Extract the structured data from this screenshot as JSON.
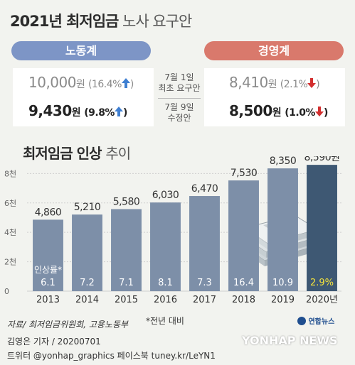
{
  "title": {
    "part1": "2021년 최저임금",
    "part2": "노사 요구안"
  },
  "labor": {
    "label": "노동계",
    "first_value": "10,000",
    "first_unit": "원",
    "first_rate": "(16.4%",
    "first_close": ")",
    "second_value": "9,430",
    "second_unit": "원",
    "second_rate": "(9.8%",
    "second_close": ")"
  },
  "management": {
    "label": "경영계",
    "first_value": "8,410",
    "first_unit": "원",
    "first_rate": "(2.1%",
    "first_close": ")",
    "second_value": "8,500",
    "second_unit": "원",
    "second_rate": "(1.0%",
    "second_close": ")"
  },
  "proposals": {
    "first_line1": "7월 1일",
    "first_line2": "최초 요구안",
    "second_line1": "7월 9일",
    "second_line2": "수정안"
  },
  "colors": {
    "labor": "#7d95c6",
    "management": "#d9796c",
    "arrow_up": "#3f7fd1",
    "arrow_down": "#d32f2f",
    "bar": "#7d8fa8",
    "bar_last": "#3e5873",
    "rate_last": "#f5e33b"
  },
  "chart_data": {
    "type": "bar",
    "title": "최저임금 인상",
    "title_suffix": "추이",
    "categories": [
      "2013",
      "2014",
      "2015",
      "2016",
      "2017",
      "2018",
      "2019",
      "2020년"
    ],
    "values": [
      4860,
      5210,
      5580,
      6030,
      6470,
      7530,
      8350,
      8590
    ],
    "value_labels": [
      "4,860",
      "5,210",
      "5,580",
      "6,030",
      "6,470",
      "7,530",
      "8,350",
      "8,590원"
    ],
    "rates": [
      "6.1",
      "7.2",
      "7.1",
      "8.1",
      "7.3",
      "16.4",
      "10.9",
      "2.9%"
    ],
    "rate_label": "인상률*",
    "yticks": [
      "0",
      "2천",
      "4천",
      "6천",
      "8천"
    ],
    "ytick_values": [
      0,
      2000,
      4000,
      6000,
      8000
    ],
    "ylim": [
      0,
      8500
    ],
    "grid": true
  },
  "footer": {
    "source": "자료/ 최저임금위원회, 고용노동부",
    "note": "*전년 대비",
    "reporter": "김영은 기자 / 20200701",
    "social": "트위터 @yonhap_graphics  페이스북 tuney.kr/LeYN1",
    "logo": "연합뉴스",
    "watermark": "YONHAP NEWS"
  }
}
